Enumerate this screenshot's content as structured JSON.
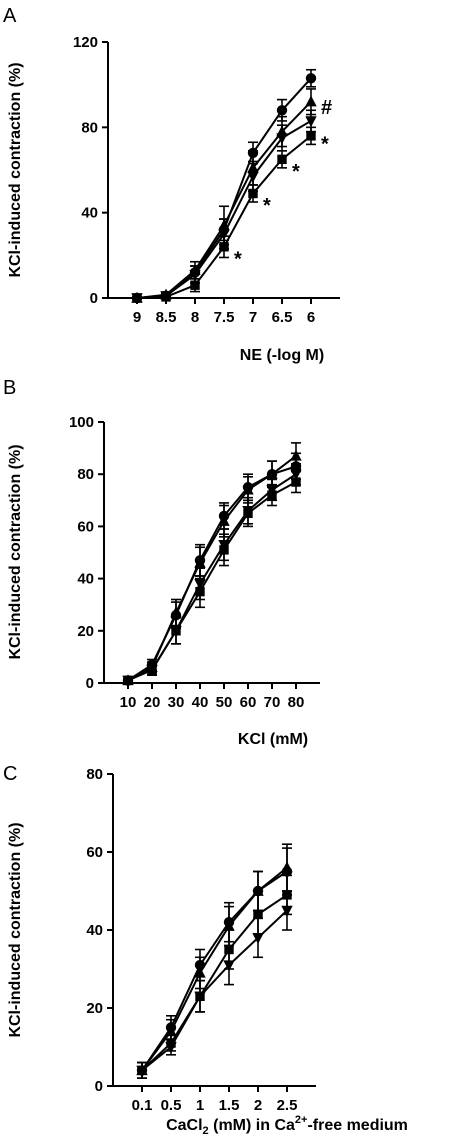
{
  "chart_data": [
    {
      "panel": "A",
      "type": "line",
      "ylabel": "KCl-induced contraction (%)",
      "xlabel": "NE (-log M)",
      "categories": [
        "9",
        "8.5",
        "8",
        "7.5",
        "7",
        "6.5",
        "6"
      ],
      "yticks": [
        "0",
        "40",
        "80",
        "120"
      ],
      "ylim": [
        0,
        120
      ],
      "grid": false,
      "series": [
        {
          "marker": "circle",
          "values": [
            0,
            1,
            12,
            32,
            68,
            88,
            103
          ],
          "errors": [
            0.5,
            1,
            3,
            5,
            5,
            5,
            4
          ]
        },
        {
          "marker": "triangle-up",
          "values": [
            0,
            1.5,
            13,
            34,
            61,
            78,
            92
          ],
          "errors": [
            0.5,
            1,
            4,
            9,
            8,
            7,
            6
          ]
        },
        {
          "marker": "triangle-down",
          "values": [
            0,
            1,
            11,
            30,
            57,
            75,
            83
          ],
          "errors": [
            0.5,
            1,
            4,
            7,
            7,
            6,
            5
          ]
        },
        {
          "marker": "square",
          "values": [
            0,
            0.5,
            6,
            24,
            49,
            65,
            76
          ],
          "errors": [
            0.5,
            0.5,
            3,
            5,
            4,
            4,
            4
          ]
        }
      ],
      "annotations": [
        {
          "text": "#",
          "category": "6",
          "y": 90
        },
        {
          "text": "*",
          "category": "6",
          "y": 73
        },
        {
          "text": "*",
          "category": "6.5",
          "y": 60
        },
        {
          "text": "*",
          "category": "7",
          "y": 44
        },
        {
          "text": "*",
          "category": "7.5",
          "y": 19
        }
      ]
    },
    {
      "panel": "B",
      "type": "line",
      "ylabel": "KCl-induced contraction (%)",
      "xlabel": "KCl (mM)",
      "categories": [
        "10",
        "20",
        "30",
        "40",
        "50",
        "60",
        "70",
        "80"
      ],
      "yticks": [
        "0",
        "20",
        "40",
        "60",
        "80",
        "100"
      ],
      "ylim": [
        0,
        100
      ],
      "grid": false,
      "series": [
        {
          "marker": "circle",
          "values": [
            1,
            7,
            26,
            47,
            64,
            75,
            80,
            83
          ],
          "errors": [
            0.5,
            2,
            5,
            6,
            5,
            5,
            5,
            5
          ]
        },
        {
          "marker": "triangle-up",
          "values": [
            1,
            6,
            27,
            46,
            62,
            74,
            80,
            87
          ],
          "errors": [
            0.5,
            2,
            5,
            6,
            6,
            5,
            5,
            5
          ]
        },
        {
          "marker": "triangle-down",
          "values": [
            1,
            5,
            20,
            38,
            53,
            66,
            74,
            80
          ],
          "errors": [
            0.5,
            2,
            5,
            6,
            6,
            5,
            4,
            4
          ]
        },
        {
          "marker": "square",
          "values": [
            1,
            5,
            20,
            35,
            51,
            65,
            72,
            77
          ],
          "errors": [
            0.5,
            2,
            5,
            6,
            6,
            5,
            4,
            4
          ]
        }
      ]
    },
    {
      "panel": "C",
      "type": "line",
      "ylabel": "KCl-induced contraction (%)",
      "xlabel_parts": [
        "CaCl",
        "2",
        " (mM) in Ca",
        "2+",
        "-free medium"
      ],
      "categories": [
        "0.1",
        "0.5",
        "1",
        "1.5",
        "2",
        "2.5"
      ],
      "yticks": [
        "0",
        "20",
        "40",
        "60",
        "80"
      ],
      "ylim": [
        0,
        80
      ],
      "grid": false,
      "series": [
        {
          "marker": "circle",
          "values": [
            4,
            15,
            31,
            42,
            50,
            55
          ],
          "errors": [
            2,
            3,
            4,
            5,
            5,
            6
          ]
        },
        {
          "marker": "triangle-up",
          "values": [
            4,
            14,
            29,
            41,
            50,
            56
          ],
          "errors": [
            2,
            3,
            4,
            5,
            5,
            6
          ]
        },
        {
          "marker": "square",
          "values": [
            4,
            11,
            23,
            35,
            44,
            49
          ],
          "errors": [
            2,
            2,
            4,
            5,
            5,
            5
          ]
        },
        {
          "marker": "triangle-down",
          "values": [
            4,
            10,
            23,
            31,
            38,
            45
          ],
          "errors": [
            2,
            2,
            4,
            5,
            5,
            5
          ]
        }
      ]
    }
  ]
}
